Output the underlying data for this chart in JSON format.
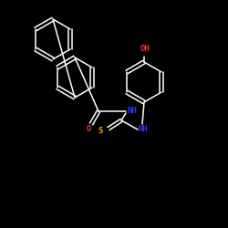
{
  "bg_color": "#000000",
  "bond_color": "#ffffff",
  "S_color": "#ffa500",
  "O_color": "#ff3333",
  "N_color": "#3333ff",
  "font_size_atom": 6.5,
  "line_width": 1.1,
  "figsize": [
    2.5,
    2.5
  ],
  "dpi": 100,
  "xlim": [
    0,
    250
  ],
  "ylim": [
    0,
    250
  ]
}
